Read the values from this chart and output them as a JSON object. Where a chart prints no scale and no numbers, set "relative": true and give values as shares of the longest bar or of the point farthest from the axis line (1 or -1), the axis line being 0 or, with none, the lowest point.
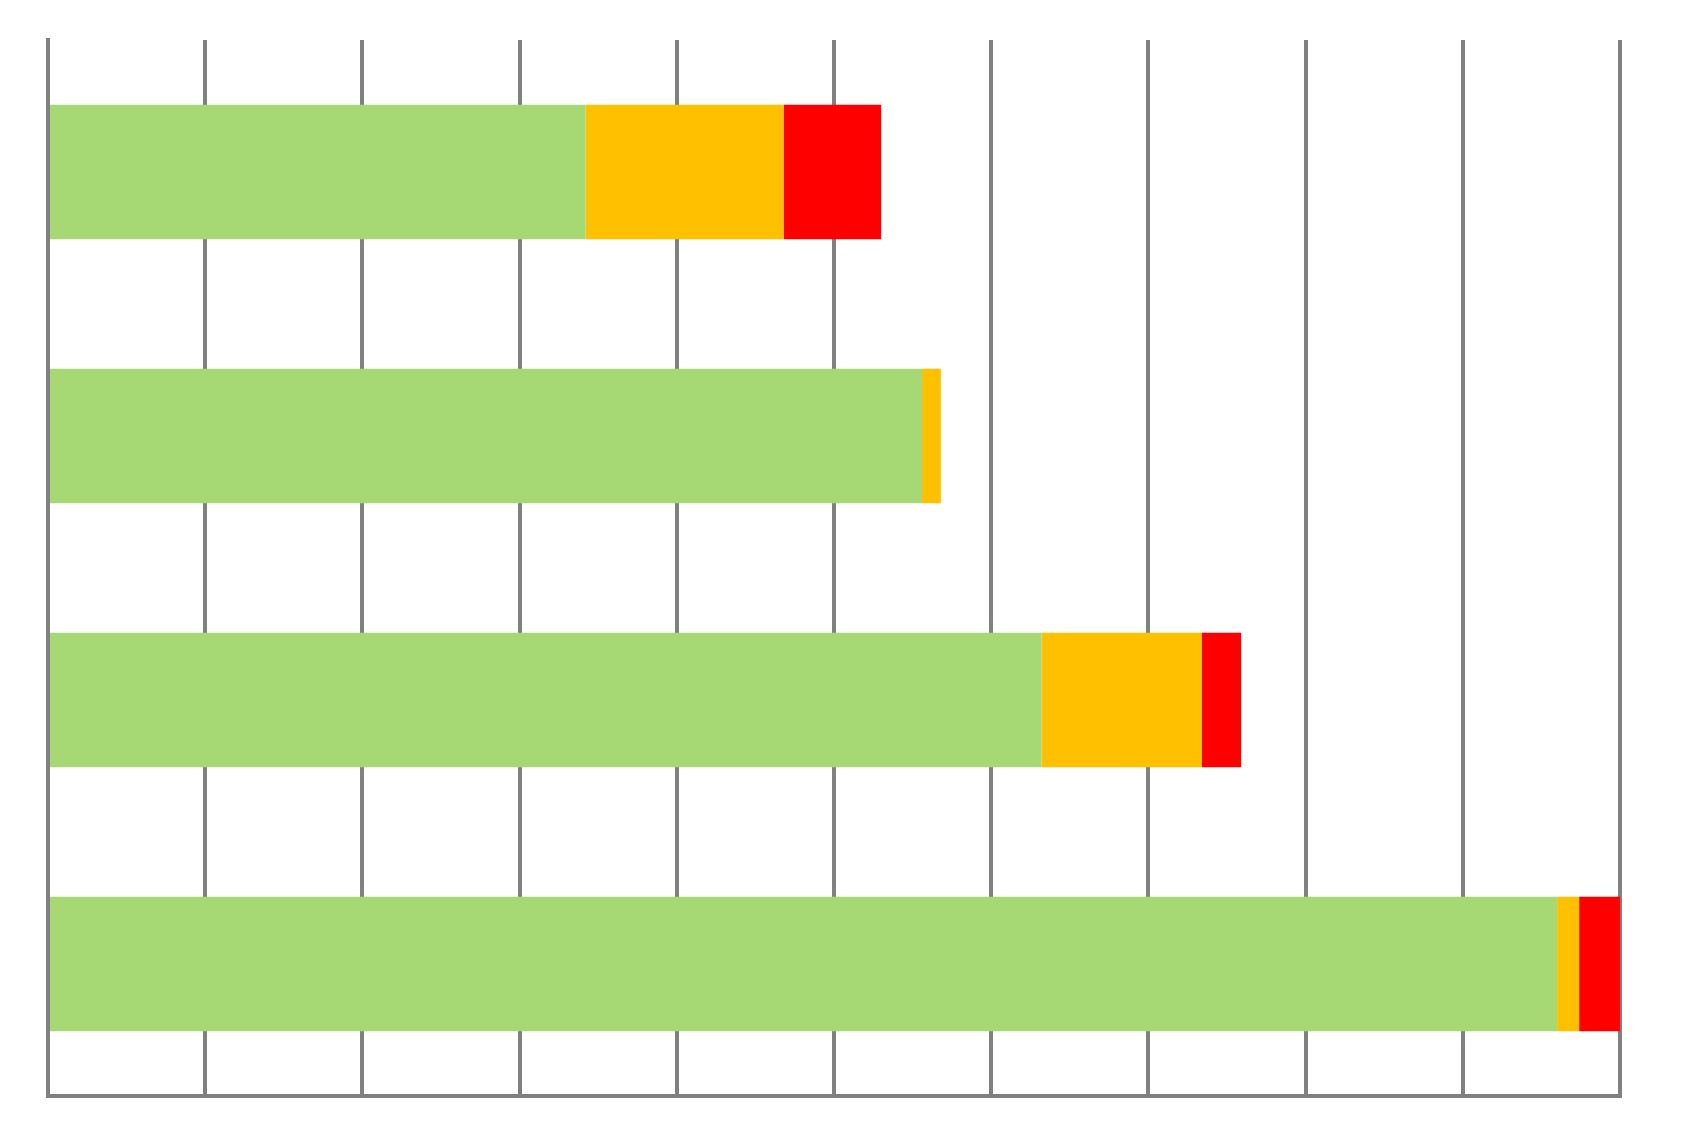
{
  "chart_data": {
    "type": "bar",
    "orientation": "horizontal",
    "stacked": true,
    "relative": true,
    "grid": "x",
    "categories": [
      null,
      null,
      null,
      null
    ],
    "series": [
      {
        "color": "#a6d873",
        "values": [
          0.342,
          0.556,
          0.632,
          0.96
        ]
      },
      {
        "color": "#ffc000",
        "values": [
          0.126,
          0.012,
          0.102,
          0.014
        ]
      },
      {
        "color": "#ff0000",
        "values": [
          0.062,
          null,
          0.025,
          0.026
        ]
      }
    ]
  }
}
